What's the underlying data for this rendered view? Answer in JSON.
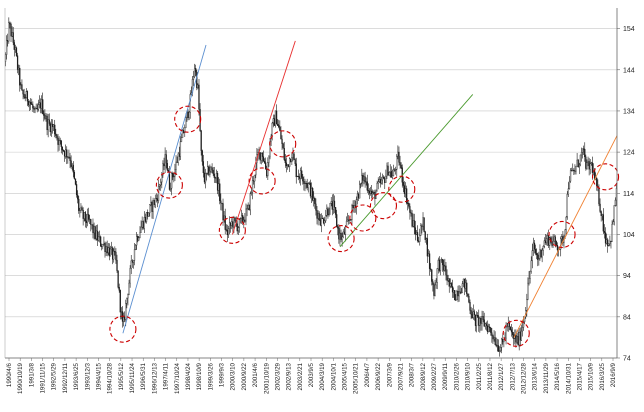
{
  "chart_data": {
    "type": "candlestick",
    "title": "",
    "xlabel": "",
    "ylabel": "",
    "ylim": [
      74,
      159
    ],
    "y_axis_side": "right",
    "yticks": [
      74,
      84,
      94,
      104,
      114,
      124,
      134,
      144,
      154
    ],
    "grid": {
      "horizontal": true,
      "vertical": false
    },
    "legend": "none",
    "colors": {
      "candle": "#1a1a1a",
      "grid": "#c8c8c8",
      "axis": "#666666",
      "circle": "#cc0000"
    },
    "xticks": [
      "1990/4/6",
      "1990/10/19",
      "1991/3/8",
      "1991/11/15",
      "1992/5/29",
      "1992/12/11",
      "1993/6/25",
      "1993/12/3",
      "1994/4/15",
      "1994/10/28",
      "1995/5/12",
      "1995/11/24",
      "1996/5/31",
      "1996/12/13",
      "1997/4/11",
      "1997/10/24",
      "1998/4/24",
      "1998/10/9",
      "1999/3/26",
      "1999/9/3",
      "2000/3/10",
      "2000/9/22",
      "2001/4/6",
      "2001/10/19",
      "2002/3/29",
      "2002/9/13",
      "2003/2/21",
      "2003/9/5",
      "2004/3/19",
      "2004/10/1",
      "2005/4/15",
      "2005/10/21",
      "2006/4/7",
      "2006/9/22",
      "2007/3/9",
      "2007/9/21",
      "2008/3/7",
      "2008/9/12",
      "2009/2/27",
      "2009/9/11",
      "2010/2/26",
      "2010/9/10",
      "2011/2/25",
      "2011/8/12",
      "2012/1/27",
      "2012/7/13",
      "2012/12/28",
      "2013/6/14",
      "2013/11/29",
      "2014/5/16",
      "2014/10/31",
      "2015/4/17",
      "2015/10/9",
      "2016/3/25",
      "2016/9/9"
    ],
    "price_path": [
      [
        1990.27,
        146
      ],
      [
        1990.45,
        155
      ],
      [
        1990.7,
        149
      ],
      [
        1991.0,
        138
      ],
      [
        1991.3,
        137
      ],
      [
        1991.6,
        133
      ],
      [
        1991.85,
        136
      ],
      [
        1992.1,
        131
      ],
      [
        1992.4,
        130
      ],
      [
        1992.65,
        126
      ],
      [
        1992.9,
        124
      ],
      [
        1993.1,
        123
      ],
      [
        1993.3,
        117
      ],
      [
        1993.5,
        110
      ],
      [
        1993.7,
        108
      ],
      [
        1993.95,
        107
      ],
      [
        1994.2,
        104
      ],
      [
        1994.45,
        102
      ],
      [
        1994.7,
        101
      ],
      [
        1994.95,
        99
      ],
      [
        1995.1,
        98
      ],
      [
        1995.3,
        87
      ],
      [
        1995.42,
        81
      ],
      [
        1995.55,
        87
      ],
      [
        1995.75,
        95
      ],
      [
        1996.0,
        103
      ],
      [
        1996.3,
        107
      ],
      [
        1996.6,
        110
      ],
      [
        1996.9,
        113
      ],
      [
        1997.1,
        118
      ],
      [
        1997.3,
        123
      ],
      [
        1997.45,
        116
      ],
      [
        1997.7,
        120
      ],
      [
        1997.95,
        126
      ],
      [
        1998.15,
        131
      ],
      [
        1998.35,
        136
      ],
      [
        1998.55,
        145
      ],
      [
        1998.7,
        139
      ],
      [
        1998.85,
        122
      ],
      [
        1999.0,
        117
      ],
      [
        1999.2,
        120
      ],
      [
        1999.5,
        118
      ],
      [
        1999.75,
        110
      ],
      [
        1999.95,
        104
      ],
      [
        2000.2,
        107
      ],
      [
        2000.45,
        106
      ],
      [
        2000.7,
        108
      ],
      [
        2000.9,
        110
      ],
      [
        2001.1,
        117
      ],
      [
        2001.3,
        123
      ],
      [
        2001.5,
        124
      ],
      [
        2001.7,
        119
      ],
      [
        2001.9,
        129
      ],
      [
        2002.1,
        133
      ],
      [
        2002.3,
        128
      ],
      [
        2002.55,
        120
      ],
      [
        2002.8,
        124
      ],
      [
        2003.0,
        119
      ],
      [
        2003.3,
        118
      ],
      [
        2003.6,
        115
      ],
      [
        2003.85,
        110
      ],
      [
        2004.1,
        107
      ],
      [
        2004.35,
        110
      ],
      [
        2004.6,
        111
      ],
      [
        2004.85,
        104
      ],
      [
        2005.0,
        103
      ],
      [
        2005.2,
        106
      ],
      [
        2005.45,
        110
      ],
      [
        2005.7,
        114
      ],
      [
        2005.9,
        118
      ],
      [
        2006.1,
        116
      ],
      [
        2006.35,
        113
      ],
      [
        2006.6,
        116
      ],
      [
        2006.8,
        117
      ],
      [
        2007.0,
        120
      ],
      [
        2007.2,
        118
      ],
      [
        2007.45,
        123
      ],
      [
        2007.65,
        117
      ],
      [
        2007.85,
        112
      ],
      [
        2008.05,
        107
      ],
      [
        2008.3,
        103
      ],
      [
        2008.55,
        107
      ],
      [
        2008.8,
        97
      ],
      [
        2009.0,
        90
      ],
      [
        2009.2,
        97
      ],
      [
        2009.45,
        96
      ],
      [
        2009.7,
        91
      ],
      [
        2009.9,
        89
      ],
      [
        2010.1,
        91
      ],
      [
        2010.35,
        92
      ],
      [
        2010.6,
        86
      ],
      [
        2010.8,
        83
      ],
      [
        2011.0,
        83
      ],
      [
        2011.3,
        82
      ],
      [
        2011.55,
        80
      ],
      [
        2011.8,
        77
      ],
      [
        2012.0,
        77
      ],
      [
        2012.2,
        82
      ],
      [
        2012.45,
        79
      ],
      [
        2012.7,
        78
      ],
      [
        2012.95,
        84
      ],
      [
        2013.15,
        93
      ],
      [
        2013.35,
        101
      ],
      [
        2013.55,
        98
      ],
      [
        2013.8,
        102
      ],
      [
        2014.0,
        103
      ],
      [
        2014.25,
        102
      ],
      [
        2014.5,
        101
      ],
      [
        2014.7,
        104
      ],
      [
        2014.9,
        118
      ],
      [
        2015.1,
        119
      ],
      [
        2015.35,
        122
      ],
      [
        2015.5,
        124
      ],
      [
        2015.7,
        120
      ],
      [
        2015.9,
        121
      ],
      [
        2016.0,
        118
      ],
      [
        2016.2,
        113
      ],
      [
        2016.35,
        108
      ],
      [
        2016.5,
        103
      ],
      [
        2016.7,
        102
      ],
      [
        2016.85,
        108
      ],
      [
        2017.0,
        117
      ]
    ],
    "trend_lines": [
      {
        "color": "#5b8fd0",
        "from": [
          1995.42,
          80
        ],
        "to": [
          1999.05,
          150
        ]
      },
      {
        "color": "#e83030",
        "from": [
          2000.2,
          104
        ],
        "to": [
          2002.95,
          151
        ]
      },
      {
        "color": "#4a9a2e",
        "from": [
          2004.9,
          101
        ],
        "to": [
          2010.7,
          138
        ]
      },
      {
        "color": "#f08030",
        "from": [
          2012.5,
          79
        ],
        "to": [
          2017.0,
          128
        ]
      }
    ],
    "circled_points": [
      [
        1995.42,
        81
      ],
      [
        1997.45,
        116
      ],
      [
        1998.25,
        132
      ],
      [
        2000.2,
        105
      ],
      [
        2001.5,
        117
      ],
      [
        2002.4,
        126
      ],
      [
        2004.95,
        103
      ],
      [
        2005.9,
        108
      ],
      [
        2006.8,
        111
      ],
      [
        2007.6,
        115
      ],
      [
        2012.6,
        80
      ],
      [
        2014.6,
        104
      ],
      [
        2016.5,
        118
      ]
    ]
  }
}
